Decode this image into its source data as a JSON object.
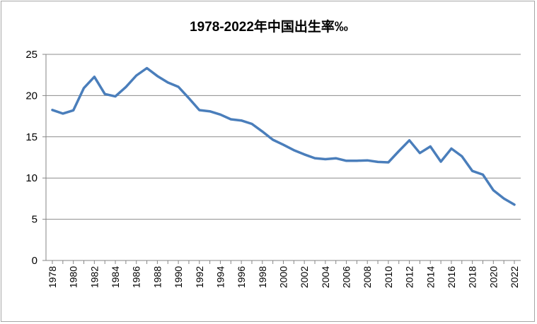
{
  "chart_data": {
    "type": "line",
    "title": "1978-2022年中国出生率‰",
    "xlabel": "",
    "ylabel": "",
    "ylim": [
      0,
      25
    ],
    "yticks": [
      0,
      5,
      10,
      15,
      20,
      25
    ],
    "grid": true,
    "legend": "none",
    "line_color": "#4a7ebb",
    "x": [
      1978,
      1979,
      1980,
      1981,
      1982,
      1983,
      1984,
      1985,
      1986,
      1987,
      1988,
      1989,
      1990,
      1991,
      1992,
      1993,
      1994,
      1995,
      1996,
      1997,
      1998,
      1999,
      2000,
      2001,
      2002,
      2003,
      2004,
      2005,
      2006,
      2007,
      2008,
      2009,
      2010,
      2011,
      2012,
      2013,
      2014,
      2015,
      2016,
      2017,
      2018,
      2019,
      2020,
      2021,
      2022
    ],
    "x_tick_labels": [
      "1978",
      "1980",
      "1982",
      "1984",
      "1986",
      "1988",
      "1990",
      "1992",
      "1994",
      "1996",
      "1998",
      "2000",
      "2002",
      "2004",
      "2006",
      "2008",
      "2010",
      "2012",
      "2014",
      "2016",
      "2018",
      "2020",
      "2022"
    ],
    "values": [
      18.25,
      17.82,
      18.21,
      20.91,
      22.28,
      20.19,
      19.9,
      21.04,
      22.43,
      23.33,
      22.37,
      21.58,
      21.06,
      19.68,
      18.24,
      18.09,
      17.7,
      17.12,
      16.98,
      16.57,
      15.64,
      14.64,
      14.03,
      13.38,
      12.86,
      12.41,
      12.29,
      12.4,
      12.09,
      12.1,
      12.14,
      11.95,
      11.9,
      13.27,
      14.57,
      13.03,
      13.83,
      11.99,
      13.57,
      12.64,
      10.86,
      10.41,
      8.52,
      7.52,
      6.77
    ]
  }
}
